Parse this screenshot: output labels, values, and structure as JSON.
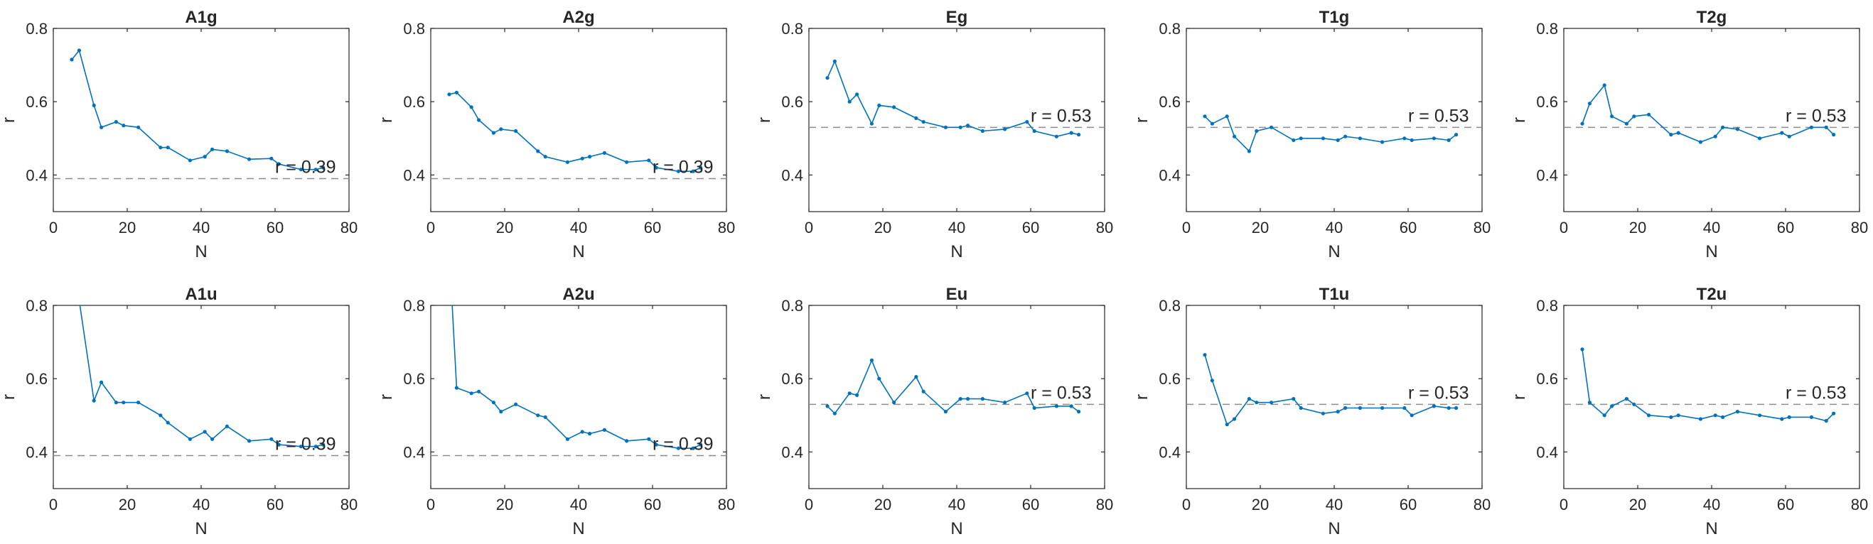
{
  "colors": {
    "series": "#0072BD",
    "reference": "#8c8c8c",
    "axes": "#262626"
  },
  "chart_data": [
    {
      "type": "line",
      "title": "A1g",
      "xlabel": "N",
      "ylabel": "r",
      "xlim": [
        0,
        80
      ],
      "ylim": [
        0.3,
        0.8
      ],
      "xticks": [
        "0",
        "20",
        "40",
        "60",
        "80"
      ],
      "yticks": [
        "0.4",
        "0.6",
        "0.8"
      ],
      "grid": false,
      "reference": {
        "y": 0.39,
        "label": "r = 0.39"
      },
      "x": [
        5,
        7,
        11,
        13,
        17,
        19,
        23,
        29,
        31,
        37,
        41,
        43,
        47,
        53,
        59,
        61,
        67,
        71,
        73
      ],
      "y": [
        0.715,
        0.74,
        0.59,
        0.53,
        0.545,
        0.535,
        0.53,
        0.475,
        0.475,
        0.44,
        0.45,
        0.47,
        0.465,
        0.443,
        0.445,
        0.43,
        0.415,
        0.415,
        0.42
      ]
    },
    {
      "type": "line",
      "title": "A2g",
      "xlabel": "N",
      "ylabel": "r",
      "xlim": [
        0,
        80
      ],
      "ylim": [
        0.3,
        0.8
      ],
      "xticks": [
        "0",
        "20",
        "40",
        "60",
        "80"
      ],
      "yticks": [
        "0.4",
        "0.6",
        "0.8"
      ],
      "grid": false,
      "reference": {
        "y": 0.39,
        "label": "r = 0.39"
      },
      "x": [
        5,
        7,
        11,
        13,
        17,
        19,
        23,
        29,
        31,
        37,
        41,
        43,
        47,
        53,
        59,
        61,
        67,
        71,
        73
      ],
      "y": [
        0.62,
        0.625,
        0.585,
        0.55,
        0.515,
        0.525,
        0.52,
        0.465,
        0.45,
        0.435,
        0.445,
        0.45,
        0.46,
        0.435,
        0.44,
        0.42,
        0.41,
        0.41,
        0.42
      ]
    },
    {
      "type": "line",
      "title": "Eg",
      "xlabel": "N",
      "ylabel": "r",
      "xlim": [
        0,
        80
      ],
      "ylim": [
        0.3,
        0.8
      ],
      "xticks": [
        "0",
        "20",
        "40",
        "60",
        "80"
      ],
      "yticks": [
        "0.4",
        "0.6",
        "0.8"
      ],
      "grid": false,
      "reference": {
        "y": 0.53,
        "label": "r = 0.53"
      },
      "x": [
        5,
        7,
        11,
        13,
        17,
        19,
        23,
        29,
        31,
        37,
        41,
        43,
        47,
        53,
        59,
        61,
        67,
        71,
        73
      ],
      "y": [
        0.665,
        0.71,
        0.6,
        0.62,
        0.54,
        0.59,
        0.585,
        0.555,
        0.545,
        0.53,
        0.53,
        0.535,
        0.52,
        0.525,
        0.545,
        0.52,
        0.505,
        0.515,
        0.51
      ]
    },
    {
      "type": "line",
      "title": "T1g",
      "xlabel": "N",
      "ylabel": "r",
      "xlim": [
        0,
        80
      ],
      "ylim": [
        0.3,
        0.8
      ],
      "xticks": [
        "0",
        "20",
        "40",
        "60",
        "80"
      ],
      "yticks": [
        "0.4",
        "0.6",
        "0.8"
      ],
      "grid": false,
      "reference": {
        "y": 0.53,
        "label": "r = 0.53"
      },
      "x": [
        5,
        7,
        11,
        13,
        17,
        19,
        23,
        29,
        31,
        37,
        41,
        43,
        47,
        53,
        59,
        61,
        67,
        71,
        73
      ],
      "y": [
        0.56,
        0.54,
        0.56,
        0.505,
        0.465,
        0.52,
        0.53,
        0.495,
        0.5,
        0.5,
        0.495,
        0.505,
        0.5,
        0.49,
        0.5,
        0.495,
        0.5,
        0.495,
        0.51
      ]
    },
    {
      "type": "line",
      "title": "T2g",
      "xlabel": "N",
      "ylabel": "r",
      "xlim": [
        0,
        80
      ],
      "ylim": [
        0.3,
        0.8
      ],
      "xticks": [
        "0",
        "20",
        "40",
        "60",
        "80"
      ],
      "yticks": [
        "0.4",
        "0.6",
        "0.8"
      ],
      "grid": false,
      "reference": {
        "y": 0.53,
        "label": "r = 0.53"
      },
      "x": [
        5,
        7,
        11,
        13,
        17,
        19,
        23,
        29,
        31,
        37,
        41,
        43,
        47,
        53,
        59,
        61,
        67,
        71,
        73
      ],
      "y": [
        0.54,
        0.595,
        0.645,
        0.56,
        0.54,
        0.56,
        0.565,
        0.51,
        0.515,
        0.49,
        0.505,
        0.53,
        0.525,
        0.5,
        0.515,
        0.505,
        0.53,
        0.53,
        0.51
      ]
    },
    {
      "type": "line",
      "title": "A1u",
      "xlabel": "N",
      "ylabel": "r",
      "xlim": [
        0,
        80
      ],
      "ylim": [
        0.3,
        0.8
      ],
      "xticks": [
        "0",
        "20",
        "40",
        "60",
        "80"
      ],
      "yticks": [
        "0.4",
        "0.6",
        "0.8"
      ],
      "grid": false,
      "reference": {
        "y": 0.39,
        "label": "r = 0.39"
      },
      "x": [
        5,
        11,
        13,
        17,
        19,
        23,
        29,
        31,
        37,
        41,
        43,
        47,
        53,
        59,
        61,
        67,
        71,
        73
      ],
      "y": [
        0.95,
        0.54,
        0.59,
        0.535,
        0.535,
        0.535,
        0.5,
        0.48,
        0.435,
        0.455,
        0.435,
        0.47,
        0.43,
        0.435,
        0.42,
        0.415,
        0.415,
        0.42
      ]
    },
    {
      "type": "line",
      "title": "A2u",
      "xlabel": "N",
      "ylabel": "r",
      "xlim": [
        0,
        80
      ],
      "ylim": [
        0.3,
        0.8
      ],
      "xticks": [
        "0",
        "20",
        "40",
        "60",
        "80"
      ],
      "yticks": [
        "0.4",
        "0.6",
        "0.8"
      ],
      "grid": false,
      "reference": {
        "y": 0.39,
        "label": "r = 0.39"
      },
      "x": [
        5,
        7,
        11,
        13,
        17,
        19,
        23,
        29,
        31,
        37,
        41,
        43,
        47,
        53,
        59,
        61,
        67,
        71,
        73
      ],
      "y": [
        0.95,
        0.575,
        0.56,
        0.565,
        0.535,
        0.51,
        0.53,
        0.5,
        0.495,
        0.435,
        0.455,
        0.45,
        0.46,
        0.43,
        0.435,
        0.42,
        0.41,
        0.41,
        0.42
      ]
    },
    {
      "type": "line",
      "title": "Eu",
      "xlabel": "N",
      "ylabel": "r",
      "xlim": [
        0,
        80
      ],
      "ylim": [
        0.3,
        0.8
      ],
      "xticks": [
        "0",
        "20",
        "40",
        "60",
        "80"
      ],
      "yticks": [
        "0.4",
        "0.6",
        "0.8"
      ],
      "grid": false,
      "reference": {
        "y": 0.53,
        "label": "r = 0.53"
      },
      "x": [
        5,
        7,
        11,
        13,
        17,
        19,
        23,
        29,
        31,
        37,
        41,
        43,
        47,
        53,
        59,
        61,
        67,
        71,
        73
      ],
      "y": [
        0.525,
        0.505,
        0.56,
        0.555,
        0.65,
        0.6,
        0.535,
        0.605,
        0.565,
        0.51,
        0.545,
        0.545,
        0.545,
        0.535,
        0.56,
        0.52,
        0.525,
        0.525,
        0.51
      ]
    },
    {
      "type": "line",
      "title": "T1u",
      "xlabel": "N",
      "ylabel": "r",
      "xlim": [
        0,
        80
      ],
      "ylim": [
        0.3,
        0.8
      ],
      "xticks": [
        "0",
        "20",
        "40",
        "60",
        "80"
      ],
      "yticks": [
        "0.4",
        "0.6",
        "0.8"
      ],
      "grid": false,
      "reference": {
        "y": 0.53,
        "label": "r = 0.53"
      },
      "x": [
        5,
        7,
        11,
        13,
        17,
        19,
        23,
        29,
        31,
        37,
        41,
        43,
        47,
        53,
        59,
        61,
        67,
        71,
        73
      ],
      "y": [
        0.665,
        0.595,
        0.475,
        0.49,
        0.545,
        0.535,
        0.535,
        0.545,
        0.52,
        0.505,
        0.51,
        0.52,
        0.52,
        0.52,
        0.52,
        0.5,
        0.525,
        0.52,
        0.52
      ]
    },
    {
      "type": "line",
      "title": "T2u",
      "xlabel": "N",
      "ylabel": "r",
      "xlim": [
        0,
        80
      ],
      "ylim": [
        0.3,
        0.8
      ],
      "xticks": [
        "0",
        "20",
        "40",
        "60",
        "80"
      ],
      "yticks": [
        "0.4",
        "0.6",
        "0.8"
      ],
      "grid": false,
      "reference": {
        "y": 0.53,
        "label": "r = 0.53"
      },
      "x": [
        5,
        7,
        11,
        13,
        17,
        19,
        23,
        29,
        31,
        37,
        41,
        43,
        47,
        53,
        59,
        61,
        67,
        71,
        73
      ],
      "y": [
        0.68,
        0.535,
        0.5,
        0.525,
        0.545,
        0.53,
        0.5,
        0.495,
        0.5,
        0.49,
        0.5,
        0.495,
        0.51,
        0.5,
        0.49,
        0.495,
        0.495,
        0.485,
        0.505
      ]
    }
  ]
}
